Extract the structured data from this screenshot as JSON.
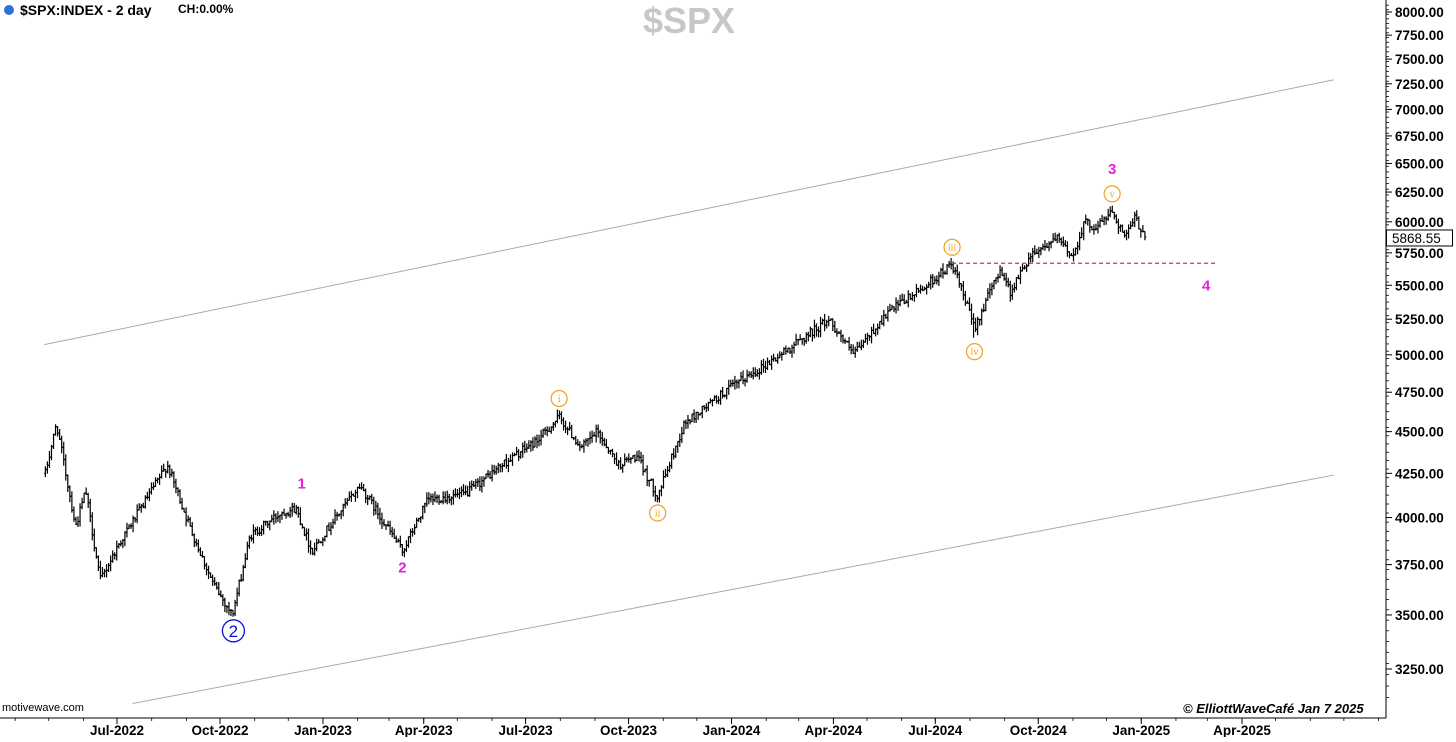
{
  "header": {
    "symbol": "$SPX:INDEX - 2 day",
    "change": "CH:0.00%",
    "title": "$SPX"
  },
  "footer": {
    "watermark": "motivewave.com",
    "copyright": "© ElliottWaveCafé Jan 7 2025"
  },
  "colors": {
    "bars": "#000000",
    "wave_major": "#e61ee6",
    "wave_minor": "#f0a020",
    "wave_primary": "#1010d0",
    "support_line": "#e03030",
    "channel": "#aaaaaa",
    "header_dot": "#2f6fd8"
  },
  "chart_data": {
    "type": "ohlc",
    "title": "$SPX",
    "interval": "2 day",
    "y_scale": "log",
    "ylim": [
      3100,
      8100
    ],
    "y_ticks": [
      "8000.00",
      "7750.00",
      "7500.00",
      "7250.00",
      "7000.00",
      "6750.00",
      "6500.00",
      "6250.00",
      "6000.00",
      "5750.00",
      "5500.00",
      "5250.00",
      "5000.00",
      "4750.00",
      "4500.00",
      "4250.00",
      "4000.00",
      "3750.00",
      "3500.00",
      "3250.00"
    ],
    "x_ticks": [
      "Jul-2022",
      "Oct-2022",
      "Jan-2023",
      "Apr-2023",
      "Jul-2023",
      "Oct-2023",
      "Jan-2024",
      "Apr-2024",
      "Jul-2024",
      "Oct-2024",
      "Jan-2025",
      "Apr-2025"
    ],
    "x_range": [
      "2022-04-27",
      "2025-06-22"
    ],
    "last_price": "5868.55",
    "price_path": [
      [
        "2022-04-28",
        4250
      ],
      [
        "2022-05-08",
        4550
      ],
      [
        "2022-05-25",
        3950
      ],
      [
        "2022-06-03",
        4150
      ],
      [
        "2022-06-16",
        3670
      ],
      [
        "2022-07-02",
        3850
      ],
      [
        "2022-08-15",
        4300
      ],
      [
        "2022-09-04",
        3950
      ],
      [
        "2022-09-25",
        3650
      ],
      [
        "2022-10-12",
        3500
      ],
      [
        "2022-10-28",
        3900
      ],
      [
        "2022-11-25",
        4030
      ],
      [
        "2022-12-08",
        4050
      ],
      [
        "2022-12-22",
        3820
      ],
      [
        "2023-01-10",
        3980
      ],
      [
        "2023-02-03",
        4180
      ],
      [
        "2023-02-25",
        3970
      ],
      [
        "2023-03-13",
        3820
      ],
      [
        "2023-04-05",
        4100
      ],
      [
        "2023-05-08",
        4130
      ],
      [
        "2023-06-10",
        4300
      ],
      [
        "2023-07-12",
        4450
      ],
      [
        "2023-07-31",
        4590
      ],
      [
        "2023-08-20",
        4400
      ],
      [
        "2023-09-03",
        4500
      ],
      [
        "2023-09-22",
        4300
      ],
      [
        "2023-10-08",
        4350
      ],
      [
        "2023-10-27",
        4120
      ],
      [
        "2023-11-20",
        4550
      ],
      [
        "2023-12-31",
        4780
      ],
      [
        "2024-02-10",
        4980
      ],
      [
        "2024-03-28",
        5250
      ],
      [
        "2024-04-19",
        5000
      ],
      [
        "2024-05-20",
        5300
      ],
      [
        "2024-06-20",
        5480
      ],
      [
        "2024-07-16",
        5660
      ],
      [
        "2024-07-25",
        5450
      ],
      [
        "2024-08-05",
        5190
      ],
      [
        "2024-08-28",
        5630
      ],
      [
        "2024-09-06",
        5450
      ],
      [
        "2024-09-25",
        5750
      ],
      [
        "2024-10-18",
        5860
      ],
      [
        "2024-11-01",
        5720
      ],
      [
        "2024-11-11",
        6000
      ],
      [
        "2024-11-21",
        5950
      ],
      [
        "2024-12-06",
        6090
      ],
      [
        "2024-12-18",
        5870
      ],
      [
        "2024-12-26",
        6030
      ],
      [
        "2025-01-06",
        5870
      ]
    ],
    "extremes": [
      {
        "date": "2022-10-13",
        "price": 3491
      },
      {
        "date": "2024-08-05",
        "price": 5119
      },
      {
        "date": "2024-12-06",
        "price": 6099
      }
    ],
    "wave_labels": [
      {
        "text": "2",
        "date": "2022-10-13",
        "price": 3491,
        "style": "primary-circle",
        "pos": "below"
      },
      {
        "text": "1",
        "date": "2022-12-13",
        "price": 4100,
        "style": "major",
        "pos": "above"
      },
      {
        "text": "2",
        "date": "2023-03-13",
        "price": 3808,
        "style": "major",
        "pos": "below"
      },
      {
        "text": "i",
        "date": "2023-07-31",
        "price": 4607,
        "style": "minor-circle",
        "pos": "above"
      },
      {
        "text": "ii",
        "date": "2023-10-27",
        "price": 4103,
        "style": "minor-circle",
        "pos": "below"
      },
      {
        "text": "iii",
        "date": "2024-07-16",
        "price": 5669,
        "style": "minor-circle",
        "pos": "above"
      },
      {
        "text": "iv",
        "date": "2024-08-05",
        "price": 5119,
        "style": "minor-circle",
        "pos": "below"
      },
      {
        "text": "v",
        "date": "2024-12-06",
        "price": 6099,
        "style": "minor-circle",
        "pos": "above"
      },
      {
        "text": "3",
        "date": "2024-12-06",
        "price": 6099,
        "style": "major",
        "pos": "above-high"
      },
      {
        "text": "4",
        "date": "2025-02-28",
        "price": 5500,
        "style": "major",
        "pos": "free"
      }
    ],
    "support_line": {
      "price": 5669,
      "start": "2024-07-16",
      "end": "2025-03-10"
    },
    "channel_lines": [
      {
        "start": {
          "date": "2022-04-27",
          "price": 5070
        },
        "end": {
          "date": "2025-06-22",
          "price": 7290
        }
      },
      {
        "start": {
          "date": "2022-07-15",
          "price": 3100
        },
        "end": {
          "date": "2025-06-22",
          "price": 4240
        }
      }
    ]
  }
}
